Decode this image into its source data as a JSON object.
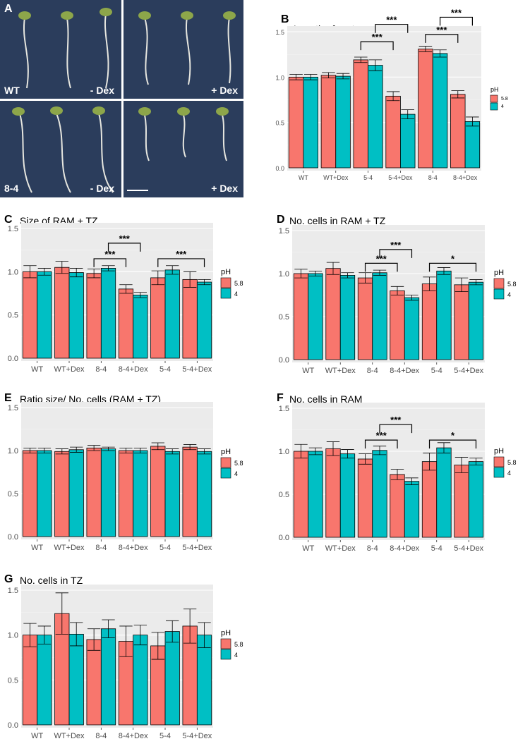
{
  "panel_a": {
    "letter": "A",
    "photos": [
      {
        "label_left": "WT",
        "label_right": "- Dex"
      },
      {
        "label_left": "",
        "label_right": "+ Dex"
      },
      {
        "label_left": "8-4",
        "label_right": "- Dex"
      },
      {
        "label_left": "",
        "label_right": "+ Dex"
      }
    ]
  },
  "legend": {
    "title": "pH",
    "items": [
      "5.8",
      "4"
    ]
  },
  "colors": {
    "ph58": "#f8766d",
    "ph4": "#00bfc4",
    "panel_bg": "#ebebeb",
    "photo_bg": "#2b3d5c"
  },
  "chart_data": [
    {
      "id": "B",
      "type": "bar",
      "letter": "B",
      "title": "Length of roots",
      "categories": [
        "WT",
        "WT+Dex",
        "5-4",
        "5-4+Dex",
        "8-4",
        "8-4+Dex"
      ],
      "series": [
        {
          "name": "5.8",
          "values": [
            1.0,
            1.02,
            1.19,
            0.79,
            1.31,
            0.81
          ],
          "errors": [
            0.03,
            0.03,
            0.03,
            0.05,
            0.03,
            0.04
          ]
        },
        {
          "name": "4",
          "values": [
            1.0,
            1.01,
            1.13,
            0.59,
            1.26,
            0.51
          ],
          "errors": [
            0.03,
            0.03,
            0.06,
            0.05,
            0.04,
            0.05
          ]
        }
      ],
      "ylim": [
        0,
        1.5
      ],
      "yticks": [
        "0.0",
        "0.5",
        "1.0",
        "1.5"
      ],
      "significance": [
        {
          "from": [
            2,
            0
          ],
          "to": [
            3,
            0
          ],
          "y": 1.39,
          "label": "***"
        },
        {
          "from": [
            2,
            1
          ],
          "to": [
            3,
            1
          ],
          "y": 1.58,
          "label": "***"
        },
        {
          "from": [
            4,
            0
          ],
          "to": [
            5,
            0
          ],
          "y": 1.47,
          "label": "***"
        },
        {
          "from": [
            4,
            1
          ],
          "to": [
            5,
            1
          ],
          "y": 1.66,
          "label": "***"
        }
      ]
    },
    {
      "id": "C",
      "type": "bar",
      "letter": "C",
      "title": "Size of RAM + TZ",
      "categories": [
        "WT",
        "WT+Dex",
        "8-4",
        "8-4+Dex",
        "5-4",
        "5-4+Dex"
      ],
      "series": [
        {
          "name": "5.8",
          "values": [
            1.0,
            1.05,
            0.98,
            0.8,
            0.93,
            0.91
          ],
          "errors": [
            0.07,
            0.07,
            0.05,
            0.05,
            0.08,
            0.09
          ]
        },
        {
          "name": "4",
          "values": [
            1.0,
            0.99,
            1.04,
            0.73,
            1.02,
            0.88
          ],
          "errors": [
            0.04,
            0.05,
            0.03,
            0.03,
            0.05,
            0.03
          ]
        }
      ],
      "ylim": [
        0,
        1.5
      ],
      "yticks": [
        "0.0",
        "0.5",
        "1.0",
        "1.5"
      ],
      "significance": [
        {
          "from": [
            2,
            0
          ],
          "to": [
            3,
            0
          ],
          "y": 1.15,
          "label": "***"
        },
        {
          "from": [
            2,
            1
          ],
          "to": [
            3,
            1
          ],
          "y": 1.33,
          "label": "***"
        },
        {
          "from": [
            4,
            0
          ],
          "to": [
            5,
            1
          ],
          "y": 1.15,
          "label": "***"
        }
      ]
    },
    {
      "id": "D",
      "type": "bar",
      "letter": "D",
      "title": "No. cells in RAM + TZ",
      "categories": [
        "WT",
        "WT+Dex",
        "8-4",
        "8-4+Dex",
        "5-4",
        "5-4+Dex"
      ],
      "series": [
        {
          "name": "5.8",
          "values": [
            1.0,
            1.06,
            0.95,
            0.8,
            0.88,
            0.87
          ],
          "errors": [
            0.05,
            0.07,
            0.06,
            0.05,
            0.08,
            0.08
          ]
        },
        {
          "name": "4",
          "values": [
            1.0,
            0.98,
            1.01,
            0.72,
            1.03,
            0.9
          ],
          "errors": [
            0.03,
            0.03,
            0.03,
            0.03,
            0.04,
            0.03
          ]
        }
      ],
      "ylim": [
        0,
        1.5
      ],
      "yticks": [
        "0.0",
        "0.5",
        "1.0",
        "1.5"
      ],
      "significance": [
        {
          "from": [
            2,
            0
          ],
          "to": [
            3,
            0
          ],
          "y": 1.12,
          "label": "***"
        },
        {
          "from": [
            2,
            1
          ],
          "to": [
            3,
            1
          ],
          "y": 1.28,
          "label": "***"
        },
        {
          "from": [
            4,
            0
          ],
          "to": [
            5,
            1
          ],
          "y": 1.12,
          "label": "*"
        }
      ]
    },
    {
      "id": "E",
      "type": "bar",
      "letter": "E",
      "title": "Ratio size/ No. cells (RAM + TZ)",
      "categories": [
        "WT",
        "WT+Dex",
        "8-4",
        "8-4+Dex",
        "5-4",
        "5-4+Dex"
      ],
      "series": [
        {
          "name": "5.8",
          "values": [
            1.0,
            0.99,
            1.03,
            1.0,
            1.05,
            1.04
          ],
          "errors": [
            0.03,
            0.03,
            0.03,
            0.03,
            0.04,
            0.03
          ]
        },
        {
          "name": "4",
          "values": [
            1.0,
            1.01,
            1.02,
            1.0,
            0.99,
            0.99
          ],
          "errors": [
            0.03,
            0.03,
            0.02,
            0.03,
            0.03,
            0.03
          ]
        }
      ],
      "ylim": [
        0,
        1.5
      ],
      "yticks": [
        "0.0",
        "0.5",
        "1.0",
        "1.5"
      ],
      "significance": []
    },
    {
      "id": "F",
      "type": "bar",
      "letter": "F",
      "title": "No. cells in RAM",
      "categories": [
        "WT",
        "WT+Dex",
        "8-4",
        "8-4+Dex",
        "5-4",
        "5-4+Dex"
      ],
      "series": [
        {
          "name": "5.8",
          "values": [
            1.0,
            1.03,
            0.91,
            0.73,
            0.88,
            0.84
          ],
          "errors": [
            0.08,
            0.08,
            0.06,
            0.06,
            0.1,
            0.09
          ]
        },
        {
          "name": "4",
          "values": [
            1.0,
            0.97,
            1.01,
            0.65,
            1.04,
            0.88
          ],
          "errors": [
            0.04,
            0.05,
            0.05,
            0.04,
            0.06,
            0.04
          ]
        }
      ],
      "ylim": [
        0,
        1.5
      ],
      "yticks": [
        "0.0",
        "0.5",
        "1.0",
        "1.5"
      ],
      "significance": [
        {
          "from": [
            2,
            0
          ],
          "to": [
            3,
            0
          ],
          "y": 1.13,
          "label": "***"
        },
        {
          "from": [
            2,
            1
          ],
          "to": [
            3,
            1
          ],
          "y": 1.31,
          "label": "***"
        },
        {
          "from": [
            4,
            0
          ],
          "to": [
            5,
            1
          ],
          "y": 1.13,
          "label": "*"
        }
      ]
    },
    {
      "id": "G",
      "type": "bar",
      "letter": "G",
      "title": "No. cells in TZ",
      "categories": [
        "WT",
        "WT+Dex",
        "8-4",
        "8-4+Dex",
        "5-4",
        "5-4+Dex"
      ],
      "series": [
        {
          "name": "5.8",
          "values": [
            1.0,
            1.24,
            0.95,
            0.93,
            0.88,
            1.1
          ],
          "errors": [
            0.13,
            0.23,
            0.12,
            0.17,
            0.15,
            0.19
          ]
        },
        {
          "name": "4",
          "values": [
            1.0,
            1.01,
            1.07,
            1.0,
            1.04,
            1.0
          ],
          "errors": [
            0.1,
            0.13,
            0.1,
            0.11,
            0.12,
            0.14
          ]
        }
      ],
      "ylim": [
        0,
        1.5
      ],
      "yticks": [
        "0.0",
        "0.5",
        "1.0",
        "1.5"
      ],
      "significance": []
    }
  ]
}
